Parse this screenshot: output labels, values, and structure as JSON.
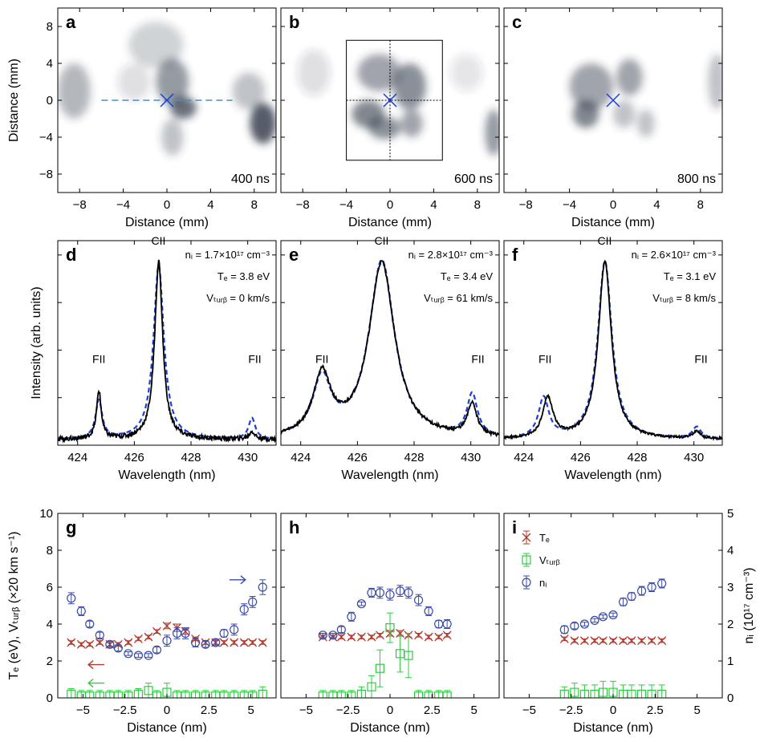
{
  "colors": {
    "te": "#b03a2e",
    "vturb": "#2ecc40",
    "ni": "#3b4ba8",
    "fit": "#1a3fd6",
    "spectrum": "#000000",
    "image": "#2b3545",
    "marker": "#1a3fd6",
    "dashed_line": "#4a90c2"
  },
  "chart_data": [
    {
      "type": "heatmap",
      "panel_label": "a",
      "time_label": "400 ns",
      "xlabel": "Distance (mm)",
      "ylabel": "Distance (mm)",
      "xlim": [
        -10,
        10
      ],
      "ylim": [
        -10,
        10
      ],
      "xticks": [
        -8,
        -4,
        0,
        4,
        8
      ],
      "yticks": [
        -8,
        -4,
        0,
        4,
        8
      ],
      "center_marker": [
        0,
        0
      ],
      "dashed_line_x": [
        -6,
        6
      ],
      "blobs": [
        [
          -8.5,
          1,
          1.5,
          3,
          0.35
        ],
        [
          -1,
          6,
          2.5,
          2.5,
          0.22
        ],
        [
          0.5,
          2,
          1.5,
          2.5,
          0.5
        ],
        [
          1.5,
          -0.8,
          1.2,
          1.2,
          0.7
        ],
        [
          0.5,
          -4,
          1,
          2,
          0.3
        ],
        [
          8.8,
          -2.5,
          1.2,
          2.2,
          0.8
        ],
        [
          7.5,
          1,
          1.5,
          2,
          0.3
        ],
        [
          -3,
          2,
          1.5,
          2,
          0.15
        ]
      ]
    },
    {
      "type": "heatmap",
      "panel_label": "b",
      "time_label": "600 ns",
      "xlabel": "Distance (mm)",
      "ylabel": "",
      "xlim": [
        -10,
        10
      ],
      "ylim": [
        -10,
        10
      ],
      "xticks": [
        -8,
        -4,
        0,
        4,
        8
      ],
      "yticks": [
        -8,
        -4,
        0,
        4,
        8
      ],
      "center_marker": [
        0,
        0
      ],
      "inset_box": {
        "x": [
          -4,
          4.8
        ],
        "y": [
          -6.5,
          6.5
        ]
      },
      "blobs": [
        [
          -1,
          3,
          2,
          2,
          0.45
        ],
        [
          1.8,
          1.5,
          1.5,
          2.5,
          0.55
        ],
        [
          -2,
          -1.5,
          1.5,
          1.5,
          0.6
        ],
        [
          -0.5,
          -3,
          1.5,
          1.2,
          0.55
        ],
        [
          2,
          -2.5,
          1,
          1.5,
          0.45
        ],
        [
          9.5,
          -3.5,
          0.8,
          2.5,
          0.5
        ],
        [
          -7,
          3,
          1.5,
          2.5,
          0.15
        ],
        [
          7,
          3,
          1.5,
          2,
          0.12
        ]
      ]
    },
    {
      "type": "heatmap",
      "panel_label": "c",
      "time_label": "800 ns",
      "xlabel": "Distance (mm)",
      "ylabel": "",
      "xlim": [
        -10,
        10
      ],
      "ylim": [
        -10,
        10
      ],
      "xticks": [
        -8,
        -4,
        0,
        4,
        8
      ],
      "yticks": [
        -8,
        -4,
        0,
        4,
        8
      ],
      "center_marker": [
        0,
        0
      ],
      "blobs": [
        [
          -2,
          1.5,
          2,
          2.5,
          0.45
        ],
        [
          -2.5,
          -1.5,
          1.2,
          1.5,
          0.6
        ],
        [
          1.5,
          2.5,
          1.2,
          2,
          0.45
        ],
        [
          1,
          -1.5,
          1,
          1.5,
          0.3
        ],
        [
          3,
          -2.5,
          0.8,
          1.5,
          0.3
        ],
        [
          9.5,
          2,
          0.8,
          3,
          0.3
        ]
      ]
    },
    {
      "type": "line",
      "panel_label": "d",
      "xlabel": "Wavelength (nm)",
      "ylabel": "Intensity (arb. units)",
      "xlim": [
        423.3,
        431
      ],
      "ylim": [
        0,
        1.07
      ],
      "xticks": [
        424,
        426,
        428,
        430
      ],
      "annotations": [
        "nᵢ = 1.7×10¹⁷ cm⁻³",
        "Tₑ = 3.8 eV",
        "Vₜᵤᵣᵦ = 0 km/s"
      ],
      "peak_labels": [
        {
          "text": "FII",
          "x": 424.75,
          "y": 0.43
        },
        {
          "text": "CII",
          "x": 426.85,
          "y": 1.05
        },
        {
          "text": "FII",
          "x": 430.25,
          "y": 0.43
        }
      ],
      "lines": [
        {
          "x": 424.75,
          "w": 0.1,
          "a": 0.25
        },
        {
          "x": 426.86,
          "w": 0.17,
          "a": 0.93
        },
        {
          "x": 430.15,
          "w": 0.12,
          "a": 0.04
        }
      ],
      "fit_lines": [
        {
          "x": 424.75,
          "w": 0.14,
          "a": 0.2
        },
        {
          "x": 426.86,
          "w": 0.22,
          "a": 0.91
        },
        {
          "x": 430.15,
          "w": 0.14,
          "a": 0.11
        }
      ],
      "baseline": 0.03,
      "noise": 0.012
    },
    {
      "type": "line",
      "panel_label": "e",
      "xlabel": "Wavelength (nm)",
      "ylabel": "",
      "xlim": [
        423.3,
        431
      ],
      "ylim": [
        0,
        1.07
      ],
      "xticks": [
        424,
        426,
        428,
        430
      ],
      "annotations": [
        "nᵢ = 2.8×10¹⁷ cm⁻³",
        "Tₑ = 3.4 eV",
        "Vₜᵤᵣᵦ = 61 km/s"
      ],
      "peak_labels": [
        {
          "text": "FII",
          "x": 424.75,
          "y": 0.43
        },
        {
          "text": "CII",
          "x": 426.85,
          "y": 1.05
        },
        {
          "text": "FII",
          "x": 430.25,
          "y": 0.43
        }
      ],
      "lines": [
        {
          "x": 424.75,
          "w": 0.38,
          "a": 0.32
        },
        {
          "x": 426.86,
          "w": 0.55,
          "a": 0.92
        },
        {
          "x": 430.05,
          "w": 0.2,
          "a": 0.17
        }
      ],
      "fit_lines": [
        {
          "x": 424.75,
          "w": 0.38,
          "a": 0.3
        },
        {
          "x": 426.86,
          "w": 0.55,
          "a": 0.93
        },
        {
          "x": 430.05,
          "w": 0.22,
          "a": 0.22
        }
      ],
      "baseline": 0.03,
      "noise": 0.008
    },
    {
      "type": "line",
      "panel_label": "f",
      "xlabel": "Wavelength (nm)",
      "ylabel": "",
      "xlim": [
        423.3,
        431
      ],
      "ylim": [
        0,
        1.07
      ],
      "xticks": [
        424,
        426,
        428,
        430
      ],
      "annotations": [
        "nᵢ = 2.6×10¹⁷ cm⁻³",
        "Tₑ = 3.1 eV",
        "Vₜᵤᵣᵦ = 8 km/s"
      ],
      "peak_labels": [
        {
          "text": "FII",
          "x": 424.75,
          "y": 0.43
        },
        {
          "text": "CII",
          "x": 426.85,
          "y": 1.05
        },
        {
          "text": "FII",
          "x": 430.25,
          "y": 0.43
        }
      ],
      "lines": [
        {
          "x": 424.85,
          "w": 0.22,
          "a": 0.21
        },
        {
          "x": 426.86,
          "w": 0.28,
          "a": 0.93
        },
        {
          "x": 430.1,
          "w": 0.15,
          "a": 0.04
        }
      ],
      "fit_lines": [
        {
          "x": 424.7,
          "w": 0.22,
          "a": 0.21
        },
        {
          "x": 426.86,
          "w": 0.3,
          "a": 0.93
        },
        {
          "x": 430.1,
          "w": 0.18,
          "a": 0.06
        }
      ],
      "baseline": 0.03,
      "noise": 0.006
    },
    {
      "type": "scatter",
      "panel_label": "g",
      "xlabel": "Distance (nm)",
      "ylabel": "Tₑ (eV), Vₜᵤᵣᵦ (×20 km s⁻¹)",
      "xlim": [
        -6.5,
        6.5
      ],
      "ylim": [
        0,
        10
      ],
      "y2lim": [
        0,
        5
      ],
      "xticks": [
        -5,
        -2.5,
        0,
        2.5,
        5
      ],
      "yticks": [
        0,
        2,
        4,
        6,
        8,
        10
      ],
      "arrows": [
        {
          "dir": "right",
          "color": "ni",
          "x": 4.2,
          "y": 6.4
        },
        {
          "dir": "left",
          "color": "te",
          "x": -4.2,
          "y": 1.8
        },
        {
          "dir": "left",
          "color": "vturb",
          "x": -4.2,
          "y": 0.8
        }
      ],
      "series": [
        {
          "name": "Tₑ",
          "axis": "left",
          "marker": "x",
          "color": "te",
          "x": [
            -5.7,
            -5.1,
            -4.6,
            -4.0,
            -3.4,
            -2.9,
            -2.3,
            -1.7,
            -1.1,
            -0.6,
            0.0,
            0.6,
            1.1,
            1.7,
            2.3,
            2.9,
            3.4,
            4.0,
            4.6,
            5.1,
            5.7
          ],
          "y": [
            3.0,
            2.9,
            2.9,
            3.0,
            2.9,
            2.9,
            3.0,
            3.2,
            3.3,
            3.6,
            3.9,
            3.8,
            3.6,
            3.2,
            3.0,
            3.0,
            3.0,
            3.0,
            3.0,
            3.0,
            3.0
          ],
          "err": [
            0.1,
            0.1,
            0.1,
            0.1,
            0.1,
            0.1,
            0.1,
            0.1,
            0.1,
            0.1,
            0.15,
            0.2,
            0.15,
            0.1,
            0.1,
            0.1,
            0.1,
            0.1,
            0.1,
            0.1,
            0.1
          ]
        },
        {
          "name": "Vₜᵤᵣᵦ",
          "axis": "left",
          "marker": "square",
          "color": "vturb",
          "x": [
            -5.7,
            -5.1,
            -4.6,
            -4.0,
            -3.4,
            -2.9,
            -2.3,
            -1.7,
            -1.1,
            -0.6,
            0.0,
            0.6,
            1.1,
            1.7,
            2.3,
            2.9,
            3.4,
            4.0,
            4.6,
            5.1,
            5.7
          ],
          "y": [
            0.2,
            0.1,
            0.1,
            0.1,
            0.1,
            0.1,
            0.1,
            0.2,
            0.4,
            0.1,
            0.3,
            0.1,
            0.1,
            0.1,
            0.1,
            0.1,
            0.1,
            0.1,
            0.1,
            0.1,
            0.2
          ],
          "err": [
            0.3,
            0.3,
            0.3,
            0.3,
            0.3,
            0.3,
            0.3,
            0.3,
            0.4,
            0.3,
            0.5,
            0.3,
            0.3,
            0.3,
            0.3,
            0.3,
            0.3,
            0.3,
            0.3,
            0.3,
            0.4
          ]
        },
        {
          "name": "nᵢ",
          "axis": "right",
          "marker": "circle",
          "color": "ni",
          "x": [
            -5.7,
            -5.1,
            -4.6,
            -4.0,
            -3.4,
            -2.9,
            -2.3,
            -1.7,
            -1.1,
            -0.6,
            0.0,
            0.6,
            1.1,
            1.7,
            2.3,
            2.9,
            3.4,
            4.0,
            4.6,
            5.1,
            5.7
          ],
          "y": [
            2.7,
            2.35,
            2.0,
            1.7,
            1.45,
            1.35,
            1.2,
            1.15,
            1.15,
            1.3,
            1.55,
            1.75,
            1.75,
            1.5,
            1.45,
            1.5,
            1.75,
            1.85,
            2.4,
            2.6,
            3.0
          ],
          "err": [
            0.15,
            0.12,
            0.08,
            0.08,
            0.08,
            0.08,
            0.05,
            0.05,
            0.05,
            0.08,
            0.15,
            0.15,
            0.15,
            0.12,
            0.08,
            0.08,
            0.1,
            0.15,
            0.15,
            0.15,
            0.2
          ]
        }
      ]
    },
    {
      "type": "scatter",
      "panel_label": "h",
      "xlabel": "Distance (nm)",
      "ylabel": "",
      "xlim": [
        -6.5,
        6.5
      ],
      "ylim": [
        0,
        10
      ],
      "y2lim": [
        0,
        5
      ],
      "xticks": [
        -5,
        -2.5,
        0,
        2.5,
        5
      ],
      "yticks": [
        0,
        2,
        4,
        6,
        8,
        10
      ],
      "series": [
        {
          "name": "Tₑ",
          "axis": "left",
          "marker": "x",
          "color": "te",
          "x": [
            -4.0,
            -3.4,
            -2.9,
            -2.3,
            -1.7,
            -1.1,
            -0.6,
            0.0,
            0.6,
            1.1,
            1.7,
            2.3,
            2.9,
            3.4
          ],
          "y": [
            3.3,
            3.3,
            3.3,
            3.3,
            3.3,
            3.3,
            3.4,
            3.5,
            3.5,
            3.4,
            3.4,
            3.3,
            3.3,
            3.4
          ],
          "err": [
            0.1,
            0.1,
            0.1,
            0.1,
            0.1,
            0.1,
            0.1,
            0.15,
            0.15,
            0.1,
            0.1,
            0.1,
            0.1,
            0.1
          ]
        },
        {
          "name": "Vₜᵤᵣᵦ",
          "axis": "left",
          "marker": "square",
          "color": "vturb",
          "x": [
            -4.0,
            -3.4,
            -2.9,
            -2.3,
            -1.7,
            -1.1,
            -0.6,
            0.0,
            0.6,
            1.1,
            1.7,
            2.3,
            2.9,
            3.4
          ],
          "y": [
            0.1,
            0.1,
            0.1,
            0.1,
            0.2,
            0.6,
            1.6,
            3.8,
            2.4,
            2.3,
            0.1,
            0.1,
            0.1,
            0.1
          ],
          "err": [
            0.3,
            0.3,
            0.3,
            0.3,
            0.4,
            0.6,
            1.0,
            0.8,
            1.0,
            1.2,
            0.3,
            0.3,
            0.3,
            0.3
          ]
        },
        {
          "name": "nᵢ",
          "axis": "right",
          "marker": "circle",
          "color": "ni",
          "x": [
            -4.0,
            -3.4,
            -2.9,
            -2.3,
            -1.7,
            -1.1,
            -0.6,
            0.0,
            0.6,
            1.1,
            1.7,
            2.3,
            2.9,
            3.4
          ],
          "y": [
            1.7,
            1.7,
            1.85,
            2.2,
            2.55,
            2.85,
            2.85,
            2.8,
            2.9,
            2.85,
            2.65,
            2.35,
            2.0,
            2.0
          ],
          "err": [
            0.05,
            0.05,
            0.08,
            0.12,
            0.05,
            0.12,
            0.15,
            0.15,
            0.15,
            0.15,
            0.15,
            0.12,
            0.1,
            0.12
          ]
        }
      ]
    },
    {
      "type": "scatter",
      "panel_label": "i",
      "xlabel": "Distance (nm)",
      "ylabel": "nᵢ (10¹⁷ cm⁻³)",
      "xlim": [
        -6.5,
        6.5
      ],
      "ylim": [
        0,
        10
      ],
      "y2lim": [
        0,
        5
      ],
      "xticks": [
        -5,
        -2.5,
        0,
        2.5,
        5
      ],
      "y2ticks": [
        0,
        1,
        2,
        3,
        4,
        5
      ],
      "legend": {
        "position": "top-left",
        "items": [
          "Tₑ",
          "Vₜᵤᵣᵦ",
          "nᵢ"
        ]
      },
      "series": [
        {
          "name": "Tₑ",
          "axis": "left",
          "marker": "x",
          "color": "te",
          "x": [
            -2.9,
            -2.3,
            -1.7,
            -1.1,
            -0.6,
            0.0,
            0.6,
            1.1,
            1.7,
            2.3,
            2.9
          ],
          "y": [
            3.2,
            3.1,
            3.1,
            3.1,
            3.1,
            3.1,
            3.1,
            3.1,
            3.1,
            3.1,
            3.1
          ],
          "err": [
            0.1,
            0.1,
            0.1,
            0.1,
            0.1,
            0.1,
            0.1,
            0.1,
            0.1,
            0.1,
            0.1
          ]
        },
        {
          "name": "Vₜᵤᵣᵦ",
          "axis": "left",
          "marker": "square",
          "color": "vturb",
          "x": [
            -2.9,
            -2.3,
            -1.7,
            -1.1,
            -0.6,
            0.0,
            0.6,
            1.1,
            1.7,
            2.3,
            2.9
          ],
          "y": [
            0.2,
            0.3,
            0.2,
            0.2,
            0.3,
            0.3,
            0.2,
            0.2,
            0.2,
            0.2,
            0.2
          ],
          "err": [
            0.4,
            0.5,
            0.5,
            0.5,
            0.6,
            0.6,
            0.5,
            0.5,
            0.5,
            0.5,
            0.5
          ]
        },
        {
          "name": "nᵢ",
          "axis": "right",
          "marker": "circle",
          "color": "ni",
          "x": [
            -2.9,
            -2.3,
            -1.7,
            -1.1,
            -0.6,
            0.0,
            0.6,
            1.1,
            1.7,
            2.3,
            2.9
          ],
          "y": [
            1.85,
            1.95,
            2.0,
            2.1,
            2.2,
            2.25,
            2.6,
            2.75,
            2.9,
            3.0,
            3.1
          ],
          "err": [
            0.1,
            0.08,
            0.05,
            0.05,
            0.05,
            0.05,
            0.1,
            0.1,
            0.12,
            0.12,
            0.12
          ]
        }
      ]
    }
  ]
}
